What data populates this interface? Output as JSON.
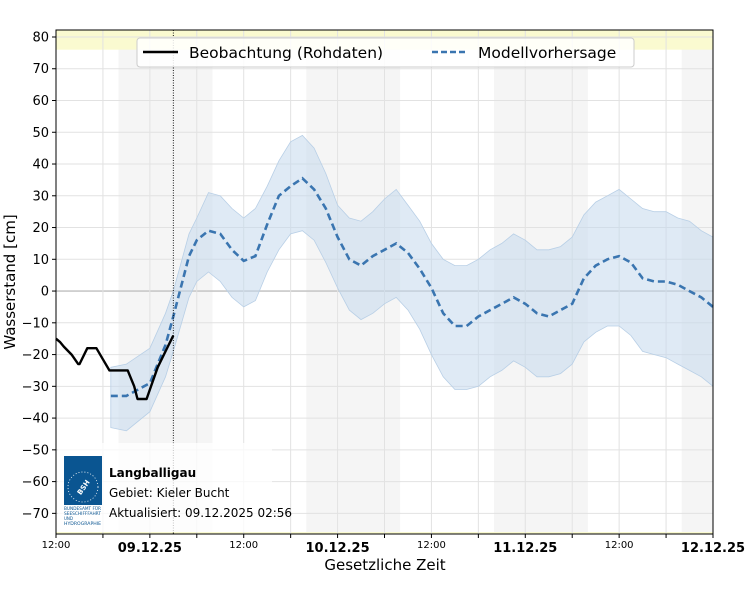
{
  "chart_data": {
    "type": "line",
    "xlabel": "Gesetzliche Zeit",
    "ylabel": "Wasserstand [cm]",
    "xlim": [
      "2025-12-08T12:00",
      "2025-12-12T00:00"
    ],
    "ylim": [
      -76.5,
      82.2
    ],
    "yticks": [
      -70,
      -60,
      -50,
      -40,
      -30,
      -20,
      -10,
      0,
      10,
      20,
      30,
      40,
      50,
      60,
      70,
      80
    ],
    "xticks": [
      {
        "t": "2025-12-08T12:00",
        "label": "12:00",
        "bold": false
      },
      {
        "t": "2025-12-09T00:00",
        "label": "09.12.25",
        "bold": true
      },
      {
        "t": "2025-12-09T12:00",
        "label": "12:00",
        "bold": false
      },
      {
        "t": "2025-12-10T00:00",
        "label": "10.12.25",
        "bold": true
      },
      {
        "t": "2025-12-10T12:00",
        "label": "12:00",
        "bold": false
      },
      {
        "t": "2025-12-11T00:00",
        "label": "11.12.25",
        "bold": true
      },
      {
        "t": "2025-12-11T12:00",
        "label": "12:00",
        "bold": false
      },
      {
        "t": "2025-12-12T00:00",
        "label": "12.12.25",
        "bold": true
      }
    ],
    "grid": true,
    "legend_position": "top-center",
    "night_periods": [
      [
        "2025-12-08T20:00",
        "2025-12-09T08:00"
      ],
      [
        "2025-12-09T20:00",
        "2025-12-10T08:00"
      ],
      [
        "2025-12-10T20:00",
        "2025-12-11T08:00"
      ],
      [
        "2025-12-11T20:00",
        "2025-12-12T00:00"
      ]
    ],
    "warning_band_above": 76,
    "current_time": "2025-12-09T03:00",
    "colors": {
      "observation": "#000000",
      "forecast": "#3a75b0",
      "forecast_band": "#c4d9ec",
      "night": "#f5f5f5",
      "warning": "#fafad0"
    },
    "series": [
      {
        "name": "Beobachtung (Rohdaten)",
        "style": "solid",
        "points": [
          [
            "2025-12-08T12:00",
            -15
          ],
          [
            "2025-12-08T12:30",
            -16
          ],
          [
            "2025-12-08T13:00",
            -17.5
          ],
          [
            "2025-12-08T14:00",
            -20
          ],
          [
            "2025-12-08T14:50",
            -23
          ],
          [
            "2025-12-08T15:00",
            -23
          ],
          [
            "2025-12-08T16:00",
            -18
          ],
          [
            "2025-12-08T17:10",
            -18
          ],
          [
            "2025-12-08T18:00",
            -21.5
          ],
          [
            "2025-12-08T18:50",
            -25
          ],
          [
            "2025-12-08T21:10",
            -25
          ],
          [
            "2025-12-08T22:00",
            -30
          ],
          [
            "2025-12-08T22:25",
            -34
          ],
          [
            "2025-12-08T23:35",
            -34
          ],
          [
            "2025-12-09T00:00",
            -31
          ],
          [
            "2025-12-09T01:00",
            -24
          ],
          [
            "2025-12-09T02:00",
            -19
          ],
          [
            "2025-12-09T03:00",
            -14
          ]
        ]
      },
      {
        "name": "Modellvorhersage",
        "style": "dashed",
        "points": [
          [
            "2025-12-08T19:00",
            -33,
            -43,
            -24
          ],
          [
            "2025-12-08T21:00",
            -33,
            -44,
            -23
          ],
          [
            "2025-12-09T00:00",
            -29,
            -38,
            -18
          ],
          [
            "2025-12-09T02:00",
            -17,
            -27,
            -7
          ],
          [
            "2025-12-09T03:00",
            -8,
            -19,
            0
          ],
          [
            "2025-12-09T05:00",
            11,
            -2,
            18
          ],
          [
            "2025-12-09T06:00",
            16,
            3,
            23
          ],
          [
            "2025-12-09T07:30",
            19,
            6,
            31
          ],
          [
            "2025-12-09T09:00",
            18,
            3,
            30
          ],
          [
            "2025-12-09T10:30",
            13,
            -2,
            26
          ],
          [
            "2025-12-09T12:00",
            9.5,
            -5,
            23
          ],
          [
            "2025-12-09T13:30",
            11,
            -3,
            26
          ],
          [
            "2025-12-09T15:00",
            21,
            6,
            33
          ],
          [
            "2025-12-09T16:30",
            30,
            13,
            41
          ],
          [
            "2025-12-09T18:00",
            33,
            18,
            47
          ],
          [
            "2025-12-09T19:30",
            35.5,
            19,
            49
          ],
          [
            "2025-12-09T21:00",
            32,
            16,
            45
          ],
          [
            "2025-12-09T22:30",
            26,
            9,
            37
          ],
          [
            "2025-12-10T00:00",
            17,
            1,
            27
          ],
          [
            "2025-12-10T01:30",
            10,
            -6,
            23
          ],
          [
            "2025-12-10T03:00",
            8,
            -9,
            22
          ],
          [
            "2025-12-10T04:30",
            11,
            -7,
            25
          ],
          [
            "2025-12-10T06:00",
            13,
            -4,
            29
          ],
          [
            "2025-12-10T07:30",
            15,
            -2,
            32
          ],
          [
            "2025-12-10T09:00",
            12,
            -6,
            27
          ],
          [
            "2025-12-10T10:30",
            7,
            -12,
            22
          ],
          [
            "2025-12-10T12:00",
            1,
            -20,
            15
          ],
          [
            "2025-12-10T13:30",
            -7,
            -27,
            10
          ],
          [
            "2025-12-10T15:00",
            -11,
            -31,
            8
          ],
          [
            "2025-12-10T16:30",
            -11,
            -31,
            8
          ],
          [
            "2025-12-10T18:00",
            -8,
            -30,
            10
          ],
          [
            "2025-12-10T19:30",
            -6,
            -27,
            13
          ],
          [
            "2025-12-10T21:00",
            -4,
            -25,
            15
          ],
          [
            "2025-12-10T22:30",
            -2,
            -22,
            18
          ],
          [
            "2025-12-11T00:00",
            -4,
            -24,
            16
          ],
          [
            "2025-12-11T01:30",
            -7,
            -27,
            13
          ],
          [
            "2025-12-11T03:00",
            -8,
            -27,
            13
          ],
          [
            "2025-12-11T04:30",
            -6,
            -26,
            14
          ],
          [
            "2025-12-11T06:00",
            -4,
            -23,
            17
          ],
          [
            "2025-12-11T07:30",
            4,
            -16,
            24
          ],
          [
            "2025-12-11T09:00",
            8,
            -13,
            28
          ],
          [
            "2025-12-11T10:30",
            10,
            -11,
            30
          ],
          [
            "2025-12-11T12:00",
            11,
            -11,
            32
          ],
          [
            "2025-12-11T13:30",
            9,
            -14,
            29
          ],
          [
            "2025-12-11T15:00",
            4,
            -19,
            26
          ],
          [
            "2025-12-11T16:30",
            3,
            -20,
            25
          ],
          [
            "2025-12-11T18:00",
            3,
            -21,
            25
          ],
          [
            "2025-12-11T19:30",
            2,
            -23,
            23
          ],
          [
            "2025-12-11T21:00",
            0,
            -25,
            22
          ],
          [
            "2025-12-11T22:30",
            -2,
            -27,
            19
          ],
          [
            "2025-12-12T00:00",
            -5,
            -30,
            17
          ]
        ]
      }
    ]
  },
  "info": {
    "station": "Langballigau",
    "area": "Gebiet: Kieler Bucht",
    "updated": "Aktualisiert: 09.12.2025 02:56",
    "logo_text": "BSH",
    "logo_caption": "BUNDESAMT FÜR SEESCHIFFFAHRT UND HYDROGRAPHIE"
  }
}
